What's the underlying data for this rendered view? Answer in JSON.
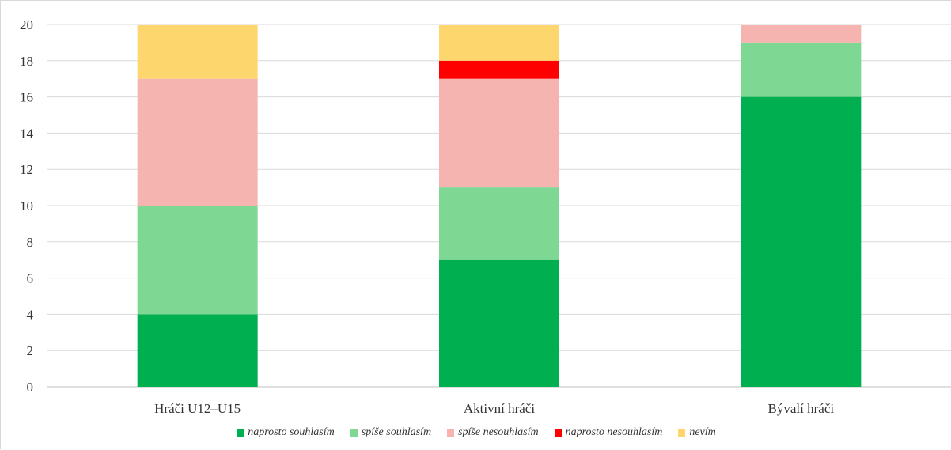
{
  "chart_data": {
    "type": "bar",
    "stacked": true,
    "categories": [
      "Hráči U12–U15",
      "Aktivní hráči",
      "Bývalí hráči"
    ],
    "series": [
      {
        "name": "naprosto souhlasím",
        "color": "#00b050",
        "values": [
          4,
          7,
          16
        ]
      },
      {
        "name": "spíše souhlasím",
        "color": "#7fd794",
        "values": [
          6,
          4,
          3
        ]
      },
      {
        "name": "spíše nesouhlasím",
        "color": "#f5b4b0",
        "values": [
          7,
          6,
          1
        ]
      },
      {
        "name": "naprosto nesouhlasím",
        "color": "#ff0000",
        "values": [
          0,
          1,
          0
        ]
      },
      {
        "name": "nevím",
        "color": "#fdd66e",
        "values": [
          3,
          2,
          0
        ]
      }
    ],
    "title": "",
    "xlabel": "",
    "ylabel": "",
    "ylim": [
      0,
      20
    ],
    "yticks": [
      0,
      2,
      4,
      6,
      8,
      10,
      12,
      14,
      16,
      18,
      20
    ],
    "grid": true,
    "legend_position": "bottom"
  }
}
